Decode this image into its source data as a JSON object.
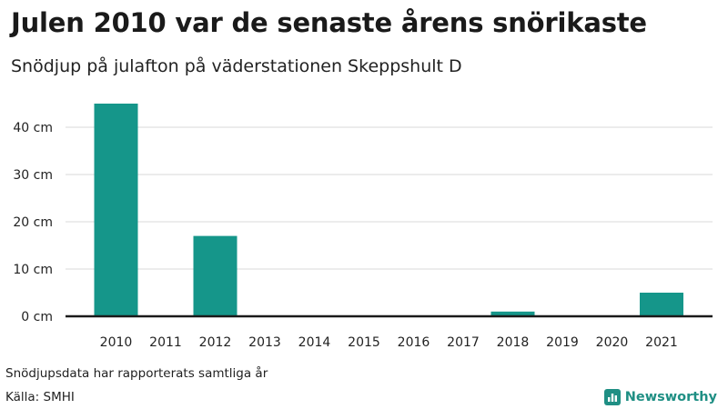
{
  "header": {
    "title": "Julen 2010 var de senaste årens snörikaste",
    "subtitle": "Snödjup på julafton på väderstationen Skeppshult D"
  },
  "footer": {
    "note": "Snödjupsdata har rapporterats samtliga år",
    "source": "Källa: SMHI",
    "brand": "Newsworthy",
    "brand_icon": "bar-chart-icon"
  },
  "colors": {
    "bar": "#15968a",
    "grid": "#d9d9d9",
    "baseline": "#1a1a1a",
    "brand": "#1f8f84"
  },
  "chart_data": {
    "type": "bar",
    "categories": [
      "2010",
      "2011",
      "2012",
      "2013",
      "2014",
      "2015",
      "2016",
      "2017",
      "2018",
      "2019",
      "2020",
      "2021"
    ],
    "values": [
      45,
      0,
      17,
      0,
      0,
      0,
      0,
      0,
      1,
      0,
      0,
      5
    ],
    "ylim": [
      0,
      45
    ],
    "yticks": [
      0,
      10,
      20,
      30,
      40
    ],
    "ytick_labels": [
      "0 cm",
      "10 cm",
      "20 cm",
      "30 cm",
      "40 cm"
    ],
    "grid": true
  }
}
